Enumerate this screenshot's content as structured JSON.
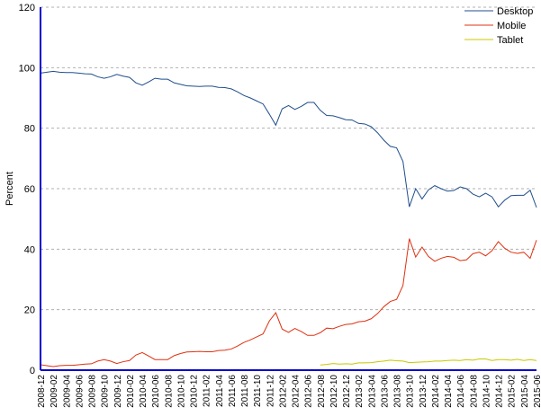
{
  "chart_data": {
    "type": "line",
    "xlabel": "",
    "ylabel": "Percent",
    "ylim": [
      0,
      120
    ],
    "yticks": [
      "0",
      "20",
      "40",
      "60",
      "80",
      "100",
      "120"
    ],
    "grid": true,
    "legend_position": "top-right",
    "x": [
      "2008-12",
      "2009-01",
      "2009-02",
      "2009-03",
      "2009-04",
      "2009-05",
      "2009-06",
      "2009-07",
      "2009-08",
      "2009-09",
      "2009-10",
      "2009-11",
      "2009-12",
      "2010-01",
      "2010-02",
      "2010-03",
      "2010-04",
      "2010-05",
      "2010-06",
      "2010-07",
      "2010-08",
      "2010-09",
      "2010-10",
      "2010-11",
      "2010-12",
      "2011-01",
      "2011-02",
      "2011-03",
      "2011-04",
      "2011-05",
      "2011-06",
      "2011-07",
      "2011-08",
      "2011-09",
      "2011-10",
      "2011-11",
      "2011-12",
      "2012-01",
      "2012-02",
      "2012-03",
      "2012-04",
      "2012-05",
      "2012-06",
      "2012-07",
      "2012-08",
      "2012-09",
      "2012-10",
      "2012-11",
      "2012-12",
      "2013-01",
      "2013-02",
      "2013-03",
      "2013-04",
      "2013-05",
      "2013-06",
      "2013-07",
      "2013-08",
      "2013-09",
      "2013-10",
      "2013-11",
      "2013-12",
      "2014-01",
      "2014-02",
      "2014-03",
      "2014-04",
      "2014-05",
      "2014-06",
      "2014-07",
      "2014-08",
      "2014-09",
      "2014-10",
      "2014-11",
      "2014-12",
      "2015-01",
      "2015-02",
      "2015-03",
      "2015-04",
      "2015-05",
      "2015-06"
    ],
    "xtick_labels": [
      "2008-12",
      "2009-02",
      "2009-04",
      "2009-06",
      "2009-08",
      "2009-10",
      "2009-12",
      "2010-02",
      "2010-04",
      "2010-06",
      "2010-08",
      "2010-10",
      "2010-12",
      "2011-02",
      "2011-04",
      "2011-06",
      "2011-08",
      "2011-10",
      "2011-12",
      "2012-02",
      "2012-04",
      "2012-06",
      "2012-08",
      "2012-10",
      "2012-12",
      "2013-02",
      "2013-04",
      "2013-06",
      "2013-08",
      "2013-10",
      "2013-12",
      "2014-02",
      "2014-04",
      "2014-06",
      "2014-08",
      "2014-10",
      "2014-12",
      "2015-02",
      "2015-04",
      "2015-06"
    ],
    "series": [
      {
        "name": "Desktop",
        "color": "#1f4e8c",
        "values": [
          98.2,
          98.5,
          98.8,
          98.5,
          98.4,
          98.4,
          98.2,
          98.0,
          97.9,
          97.0,
          96.5,
          97.0,
          97.8,
          97.2,
          96.8,
          95.0,
          94.2,
          95.3,
          96.5,
          96.2,
          96.2,
          95.0,
          94.5,
          94.0,
          93.9,
          93.8,
          93.9,
          93.9,
          93.5,
          93.4,
          93.0,
          92.0,
          90.8,
          90.0,
          89.0,
          88.0,
          84.6,
          81.0,
          86.4,
          87.5,
          86.2,
          87.2,
          88.5,
          88.5,
          85.9,
          84.2,
          84.1,
          83.5,
          82.8,
          82.7,
          81.6,
          81.4,
          80.5,
          78.5,
          76.0,
          74.0,
          73.5,
          69.0,
          54.0,
          60.0,
          56.6,
          59.6,
          61.0,
          60.0,
          59.2,
          59.4,
          60.6,
          60.0,
          58.2,
          57.3,
          58.5,
          57.3,
          54.0,
          56.2,
          57.7,
          57.8,
          57.8,
          59.5,
          53.8
        ]
      },
      {
        "name": "Mobile",
        "color": "#e03010",
        "values": [
          1.8,
          1.5,
          1.2,
          1.5,
          1.6,
          1.6,
          1.8,
          2.0,
          2.1,
          3.0,
          3.5,
          3.0,
          2.2,
          2.8,
          3.2,
          5.0,
          5.8,
          4.7,
          3.5,
          3.5,
          3.5,
          4.8,
          5.5,
          6.0,
          6.1,
          6.2,
          6.1,
          6.1,
          6.5,
          6.6,
          7.0,
          8.0,
          9.2,
          10.0,
          11.0,
          12.0,
          16.3,
          19.0,
          13.6,
          12.5,
          13.8,
          12.8,
          11.5,
          11.5,
          12.4,
          13.9,
          13.7,
          14.5,
          15.1,
          15.3,
          16.0,
          16.2,
          17.0,
          18.7,
          21.0,
          22.7,
          23.4,
          28.0,
          43.5,
          37.4,
          40.7,
          37.6,
          36.0,
          37.0,
          37.6,
          37.3,
          36.2,
          36.5,
          38.5,
          39.0,
          37.8,
          39.5,
          42.5,
          40.3,
          39.0,
          38.6,
          39.0,
          37.0,
          43.0
        ]
      },
      {
        "name": "Tablet",
        "color": "#c8c800",
        "values": [
          null,
          null,
          null,
          null,
          null,
          null,
          null,
          null,
          null,
          null,
          null,
          null,
          null,
          null,
          null,
          null,
          null,
          null,
          null,
          null,
          null,
          null,
          null,
          null,
          null,
          null,
          null,
          null,
          null,
          null,
          null,
          null,
          null,
          null,
          null,
          null,
          null,
          null,
          null,
          null,
          null,
          null,
          null,
          null,
          1.7,
          1.9,
          2.2,
          2.0,
          2.1,
          2.0,
          2.4,
          2.4,
          2.5,
          2.8,
          3.0,
          3.3,
          3.1,
          3.0,
          2.5,
          2.6,
          2.7,
          2.8,
          3.0,
          3.0,
          3.2,
          3.3,
          3.2,
          3.5,
          3.3,
          3.7,
          3.7,
          3.2,
          3.5,
          3.5,
          3.3,
          3.6,
          3.2,
          3.5,
          3.2
        ]
      }
    ]
  }
}
